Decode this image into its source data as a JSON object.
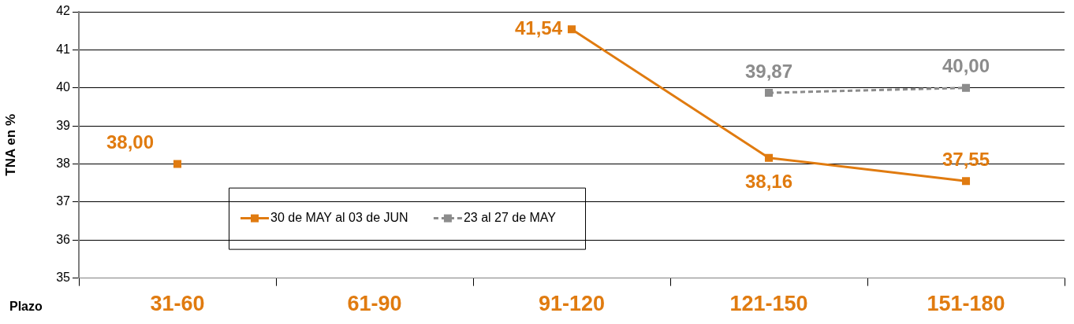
{
  "chart_data": {
    "type": "line",
    "xlabel": "Plazo",
    "ylabel": "TNA en %",
    "categories": [
      "31-60",
      "61-90",
      "91-120",
      "121-150",
      "151-180"
    ],
    "series": [
      {
        "name": "30 de MAY al 03 de JUN",
        "color": "#e07b10",
        "values": [
          38.0,
          null,
          41.54,
          38.16,
          37.55
        ],
        "value_labels": [
          "38,00",
          null,
          "41,54",
          "38,16",
          "37,55"
        ]
      },
      {
        "name": "23 al 27 de MAY",
        "color": "#8c8c8c",
        "line_style": "dashed",
        "values": [
          null,
          null,
          null,
          39.87,
          40.0
        ],
        "value_labels": [
          null,
          null,
          null,
          "39,87",
          "40,00"
        ]
      }
    ],
    "ylim": [
      35,
      42
    ],
    "yticks": [
      35,
      36,
      37,
      38,
      39,
      40,
      41,
      42
    ],
    "grid": "y",
    "legend": "bottom left",
    "marker": "square",
    "line_style": "solid"
  }
}
